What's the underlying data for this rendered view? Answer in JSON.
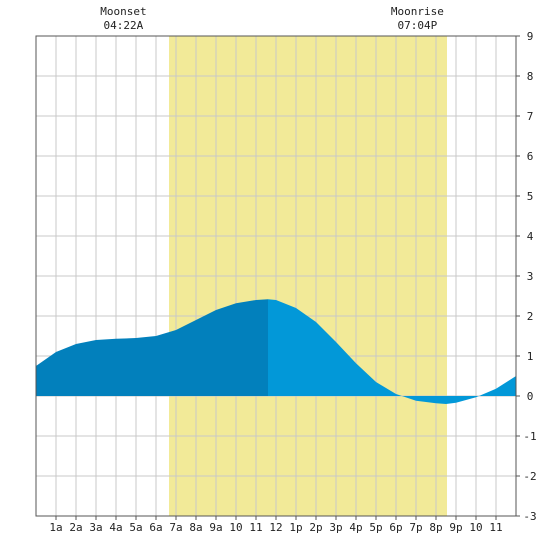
{
  "chart_data": {
    "type": "area",
    "x_unit": "hour",
    "x_ticks": [
      "1a",
      "2a",
      "3a",
      "4a",
      "5a",
      "6a",
      "7a",
      "8a",
      "9a",
      "10",
      "11",
      "12",
      "1p",
      "2p",
      "3p",
      "4p",
      "5p",
      "6p",
      "7p",
      "8p",
      "9p",
      "10",
      "11"
    ],
    "y_ticks": [
      "9",
      "8",
      "7",
      "6",
      "5",
      "4",
      "3",
      "2",
      "1",
      "0",
      "-1",
      "-2",
      "-3"
    ],
    "xlim": [
      0,
      24
    ],
    "ylim": [
      -3,
      9
    ],
    "grid": true,
    "daylight": {
      "start_hour": 6.65,
      "end_hour": 20.55,
      "color": "#f2ea98"
    },
    "moon_events": [
      {
        "label": "Moonset",
        "time": "04:22A",
        "hour": 4.37
      },
      {
        "label": "Moonrise",
        "time": "07:04P",
        "hour": 19.07
      }
    ],
    "tide_color_split_hour": 11.6,
    "colors": {
      "early_tide": "#0280bc",
      "late_tide": "#0298d8",
      "grid": "#c8c8c8",
      "axis": "#555555"
    },
    "series": [
      {
        "x": [
          0,
          1,
          2,
          3,
          4,
          5,
          6,
          7,
          8,
          9,
          10,
          11,
          11.6,
          12,
          13,
          14,
          15,
          16,
          17,
          18,
          19,
          20,
          20.5,
          21,
          22,
          23,
          24
        ],
        "y": [
          0.75,
          1.1,
          1.3,
          1.4,
          1.43,
          1.45,
          1.5,
          1.65,
          1.9,
          2.15,
          2.32,
          2.4,
          2.42,
          2.4,
          2.2,
          1.85,
          1.35,
          0.82,
          0.35,
          0.05,
          -0.12,
          -0.18,
          -0.2,
          -0.17,
          -0.03,
          0.18,
          0.5
        ]
      }
    ]
  }
}
